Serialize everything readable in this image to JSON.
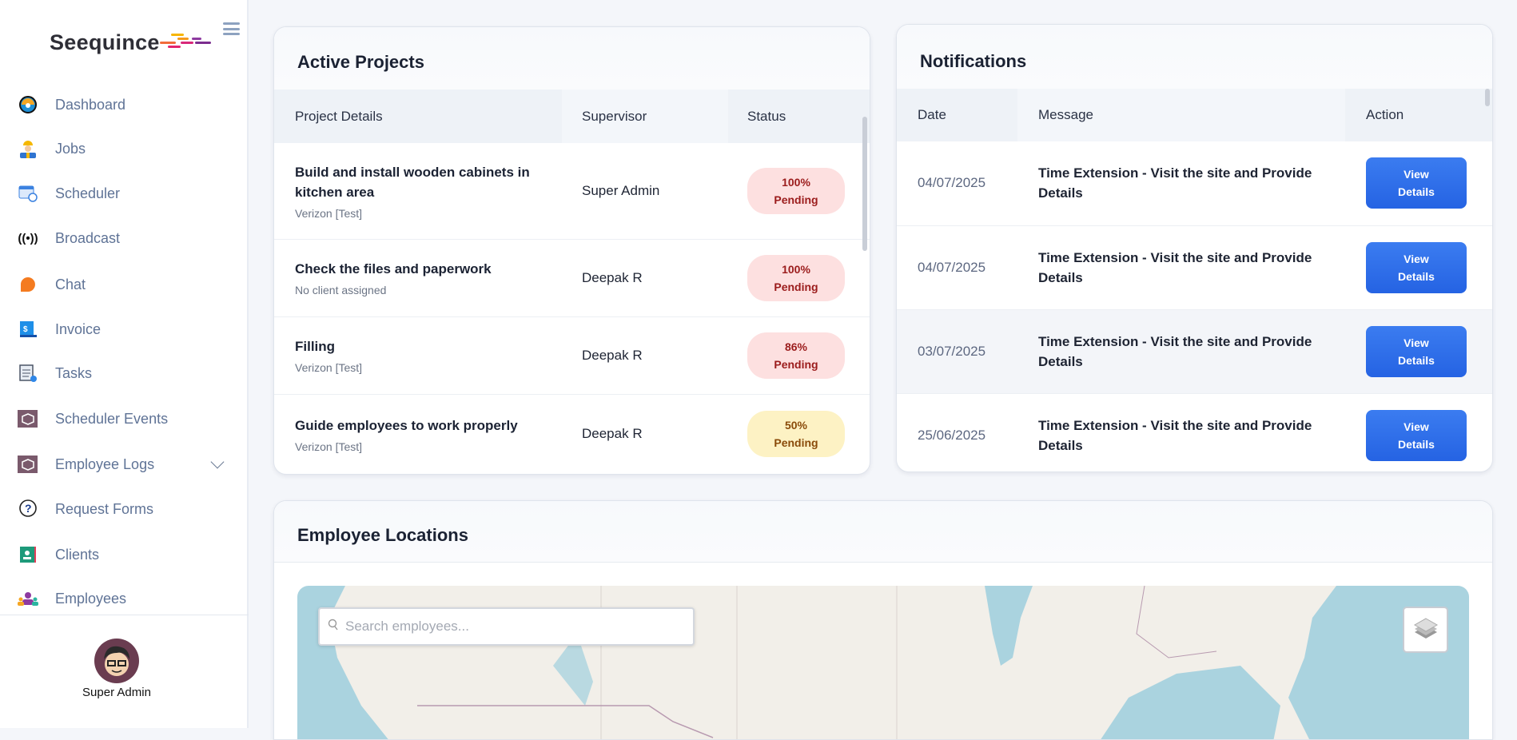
{
  "brand": {
    "name": "Seequince"
  },
  "sidebar": {
    "items": [
      {
        "label": "Dashboard",
        "icon": "dashboard-gauge-icon"
      },
      {
        "label": "Jobs",
        "icon": "worker-icon"
      },
      {
        "label": "Scheduler",
        "icon": "calendar-clock-icon"
      },
      {
        "label": "Broadcast",
        "icon": "broadcast-icon"
      },
      {
        "label": "Chat",
        "icon": "chat-bubble-icon"
      },
      {
        "label": "Invoice",
        "icon": "invoice-dollar-icon"
      },
      {
        "label": "Tasks",
        "icon": "checklist-icon"
      },
      {
        "label": "Scheduler Events",
        "icon": "box-icon"
      },
      {
        "label": "Employee Logs",
        "icon": "box-icon"
      },
      {
        "label": "Request Forms",
        "icon": "question-bubble-icon"
      },
      {
        "label": "Clients",
        "icon": "contact-card-icon"
      },
      {
        "label": "Employees",
        "icon": "people-group-icon"
      }
    ],
    "user": {
      "name": "Super Admin"
    }
  },
  "projects": {
    "title": "Active Projects",
    "columns": [
      "Project Details",
      "Supervisor",
      "Status"
    ],
    "rows": [
      {
        "title": "Build and install wooden cabinets in kitchen area",
        "client": "Verizon [Test]",
        "supervisor": "Super Admin",
        "percent": "100%",
        "status": "Pending",
        "color": "red"
      },
      {
        "title": "Check the files and paperwork",
        "client": "No client assigned",
        "supervisor": "Deepak R",
        "percent": "100%",
        "status": "Pending",
        "color": "red"
      },
      {
        "title": "Filling",
        "client": "Verizon [Test]",
        "supervisor": "Deepak R",
        "percent": "86%",
        "status": "Pending",
        "color": "red"
      },
      {
        "title": "Guide employees to work properly",
        "client": "Verizon [Test]",
        "supervisor": "Deepak R",
        "percent": "50%",
        "status": "Pending",
        "color": "yellow"
      }
    ]
  },
  "notifications": {
    "title": "Notifications",
    "columns": [
      "Date",
      "Message",
      "Action"
    ],
    "button_line1": "View",
    "button_line2": "Details",
    "rows": [
      {
        "date": "04/07/2025",
        "message": "Time Extension - Visit the site and Provide Details"
      },
      {
        "date": "04/07/2025",
        "message": "Time Extension - Visit the site and Provide Details"
      },
      {
        "date": "03/07/2025",
        "message": "Time Extension - Visit the site and Provide Details"
      },
      {
        "date": "25/06/2025",
        "message": "Time Extension - Visit the site and Provide Details"
      }
    ]
  },
  "locations": {
    "title": "Employee Locations",
    "search_placeholder": "Search employees..."
  },
  "colors": {
    "accent": "#2563e3",
    "water": "#aad3df",
    "land": "#f2efe9"
  }
}
